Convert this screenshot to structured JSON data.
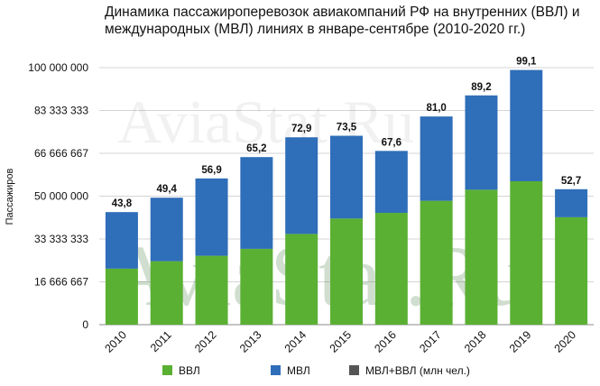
{
  "chart_data": {
    "type": "bar",
    "stacked": true,
    "title": "Динамика пассажироперевозок авиакомпаний РФ на внутренних (ВВЛ) и международных (МВЛ) линиях в январе-сентябре (2010-2020 гг.)",
    "ylabel": "Пассажиров",
    "xlabel": "",
    "ylim": [
      0,
      100000000
    ],
    "yticks": [
      0,
      16666667,
      33333333,
      50000000,
      66666667,
      83333333,
      100000000
    ],
    "ytick_labels": [
      "0",
      "16 666 667",
      "33 333 333",
      "50 000 000",
      "66 666 667",
      "83 333 333",
      "100 000 000"
    ],
    "grid": true,
    "legend_position": "bottom",
    "categories": [
      "2010",
      "2011",
      "2012",
      "2013",
      "2014",
      "2015",
      "2016",
      "2017",
      "2018",
      "2019",
      "2020"
    ],
    "series": [
      {
        "name": "ВВЛ",
        "color": "#5ab033",
        "values": [
          21800000,
          24700000,
          26800000,
          29500000,
          35300000,
          41300000,
          43500000,
          48200000,
          52500000,
          55800000,
          41800000
        ]
      },
      {
        "name": "МВЛ",
        "color": "#2f6eb8",
        "values": [
          22000000,
          24700000,
          30100000,
          35700000,
          37600000,
          32200000,
          24100000,
          32800000,
          36700000,
          43300000,
          10900000
        ]
      },
      {
        "name": "МВЛ+ВВЛ (млн чел.)",
        "color": "#555555",
        "labels": [
          "43,8",
          "49,4",
          "56,9",
          "65,2",
          "72,9",
          "73,5",
          "67,6",
          "81,0",
          "89,2",
          "99,1",
          "52,7"
        ]
      }
    ],
    "watermark": "AviaStat.Ru"
  }
}
